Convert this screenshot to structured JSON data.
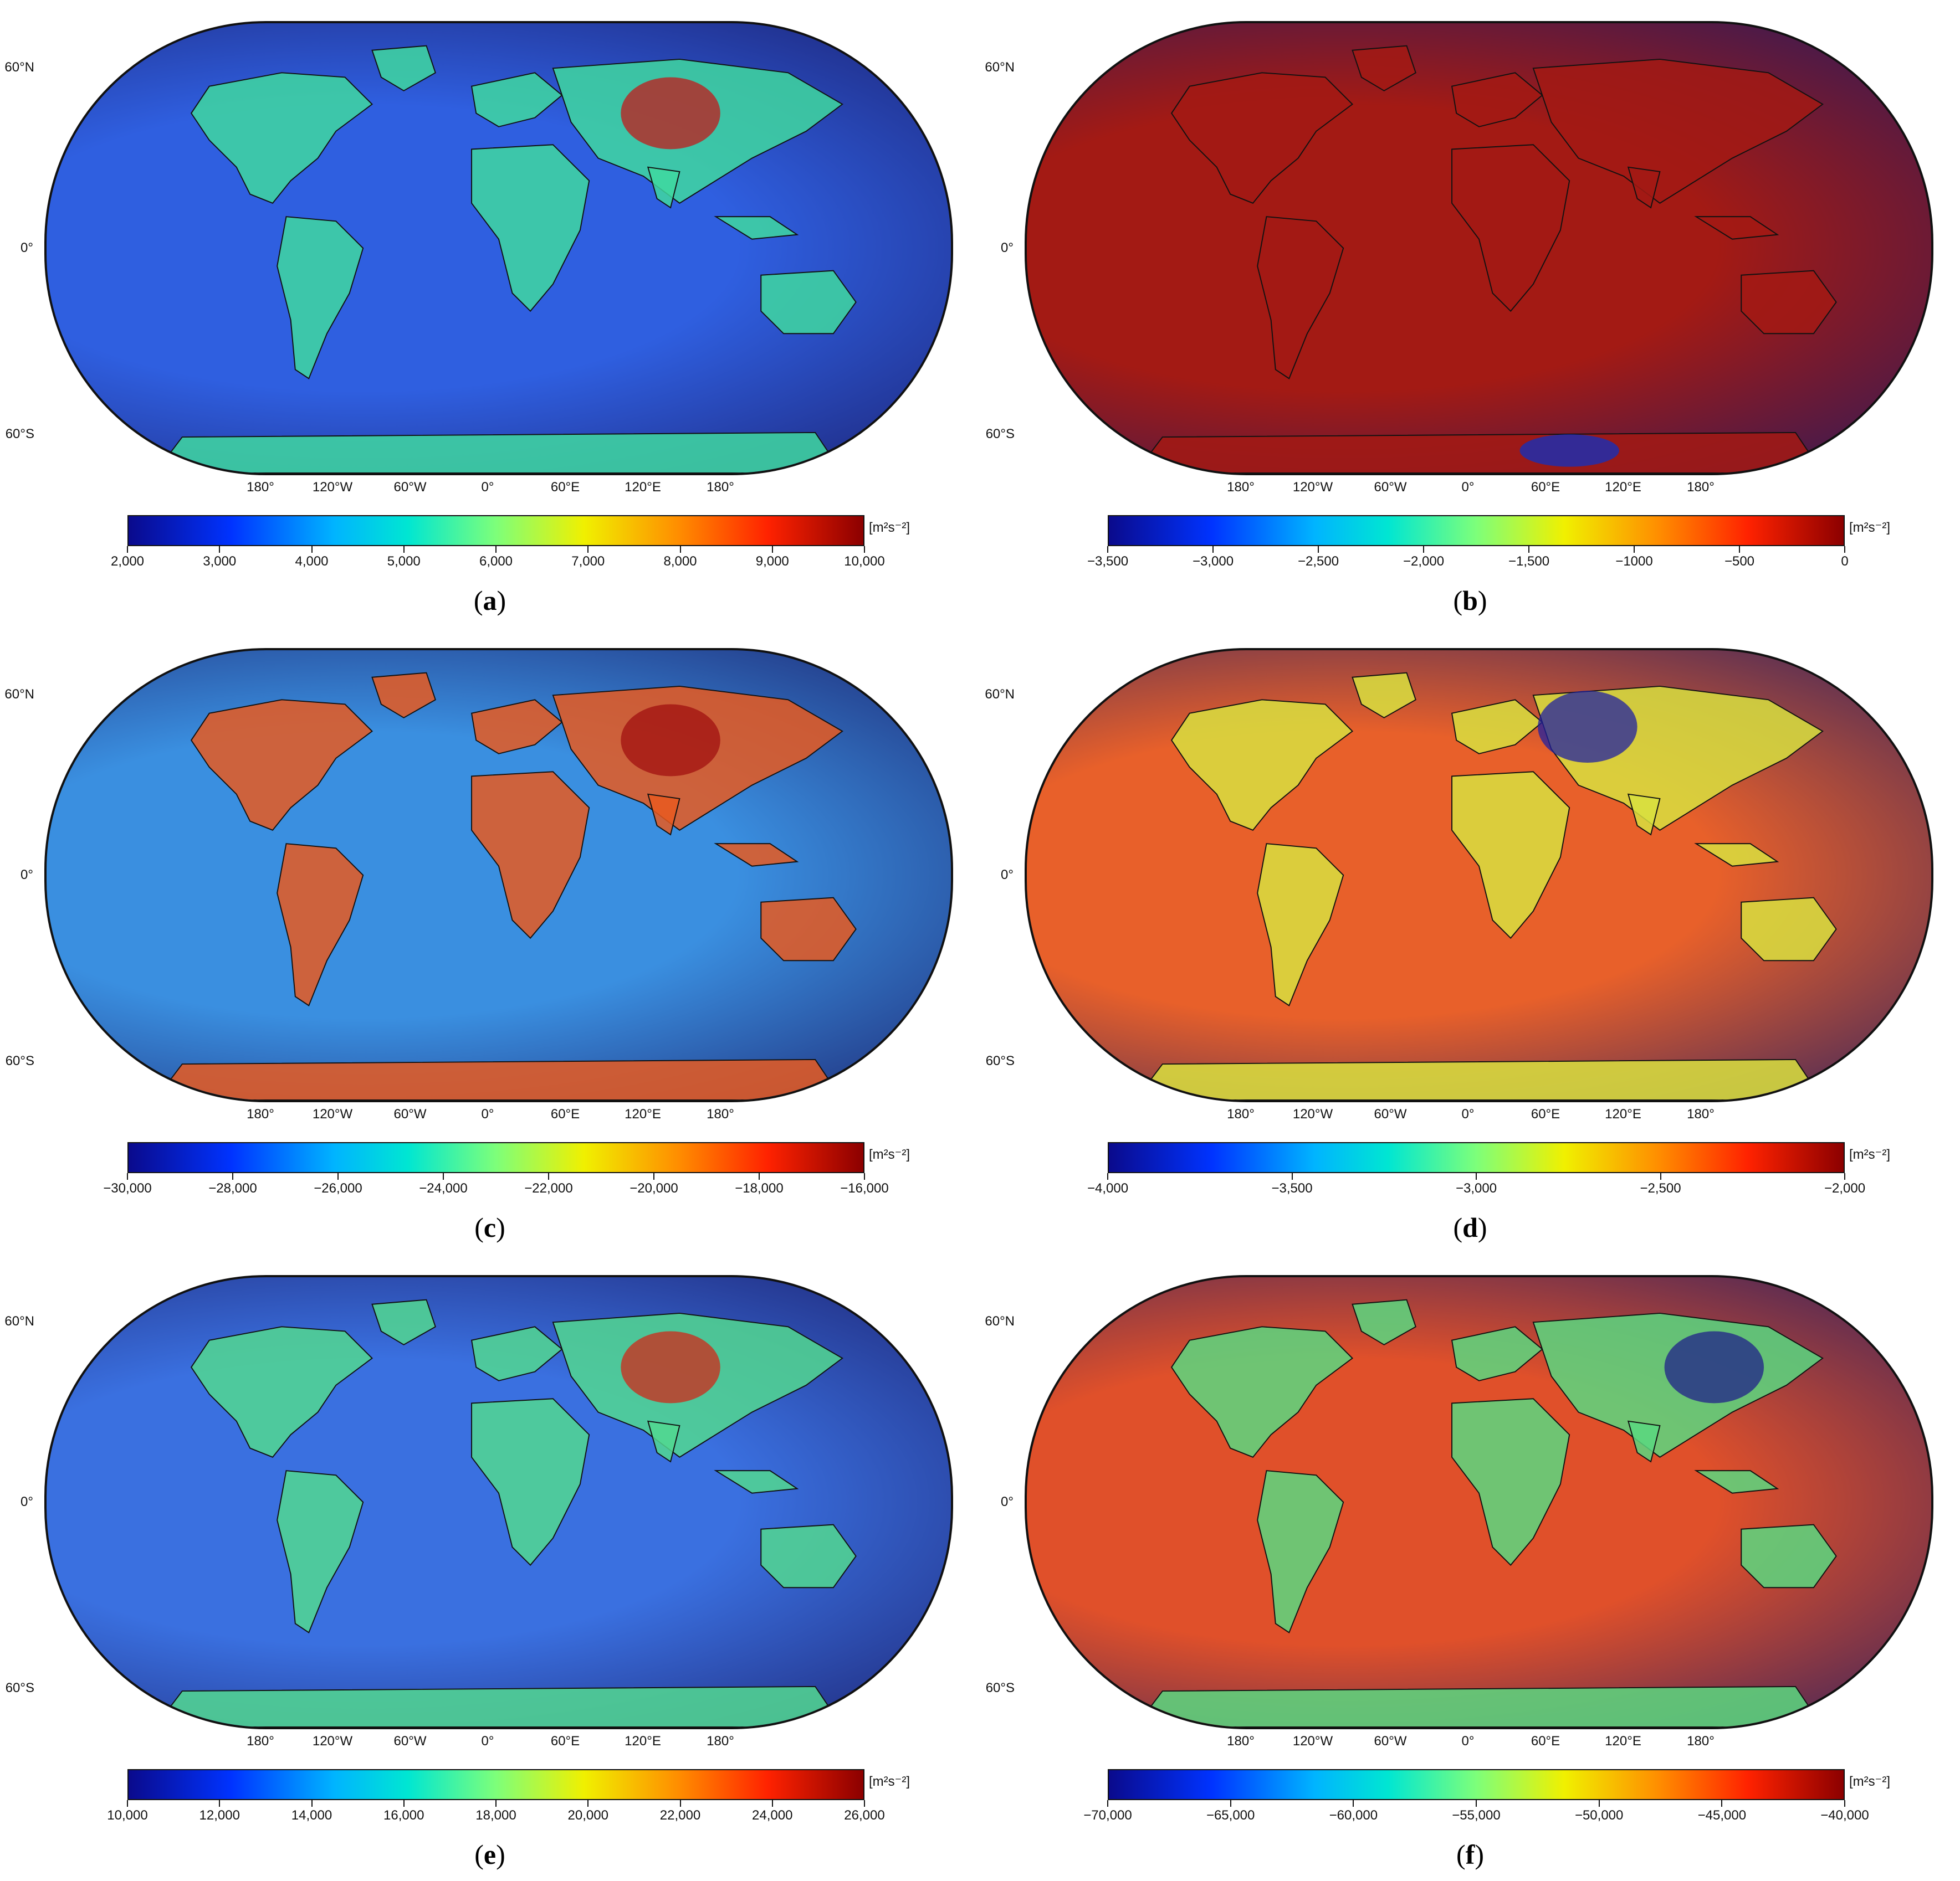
{
  "lat_labels": [
    "60°N",
    "0°",
    "60°S"
  ],
  "lon_labels": [
    "180°",
    "120°W",
    "60°W",
    "0°",
    "60°E",
    "120°E",
    "180°"
  ],
  "unit_label": "[m²s⁻²]",
  "panels": [
    {
      "id": "a",
      "caption": "a",
      "map_tint": "#2f5fe0",
      "land_tint": "#3fd8a0",
      "highlight": "#c21a1a",
      "colorbar": {
        "min": 2000,
        "max": 10000,
        "ticks": [
          "2,000",
          "3,000",
          "4,000",
          "5,000",
          "6,000",
          "7,000",
          "8,000",
          "9,000",
          "10,000"
        ]
      }
    },
    {
      "id": "b",
      "caption": "b",
      "map_tint": "#a31a14",
      "land_tint": "#a31a14",
      "highlight": "#1030c0",
      "colorbar": {
        "min": -3500,
        "max": 0,
        "ticks": [
          "−3,500",
          "−3,000",
          "−2,500",
          "−2,000",
          "−1,500",
          "−1000",
          "−500",
          "0"
        ]
      }
    },
    {
      "id": "c",
      "caption": "c",
      "map_tint": "#3a8fe0",
      "land_tint": "#e85a20",
      "highlight": "#a01010",
      "colorbar": {
        "min": -30000,
        "max": -16000,
        "ticks": [
          "−30,000",
          "−28,000",
          "−26,000",
          "−24,000",
          "−22,000",
          "−20,000",
          "−18,000",
          "−16,000"
        ]
      }
    },
    {
      "id": "d",
      "caption": "d",
      "map_tint": "#e8602a",
      "land_tint": "#d8e040",
      "highlight": "#2020a0",
      "colorbar": {
        "min": -4000,
        "max": -2000,
        "ticks": [
          "−4,000",
          "−3,500",
          "−3,000",
          "−2,500",
          "−2,000"
        ]
      }
    },
    {
      "id": "e",
      "caption": "e",
      "map_tint": "#3a70e0",
      "land_tint": "#52d890",
      "highlight": "#d02818",
      "colorbar": {
        "min": 10000,
        "max": 26000,
        "ticks": [
          "10,000",
          "12,000",
          "14,000",
          "16,000",
          "18,000",
          "20,000",
          "22,000",
          "24,000",
          "26,000"
        ]
      }
    },
    {
      "id": "f",
      "caption": "f",
      "map_tint": "#e0502a",
      "land_tint": "#5ad880",
      "highlight": "#20208a",
      "colorbar": {
        "min": -70000,
        "max": -40000,
        "ticks": [
          "−70,000",
          "−65,000",
          "−60,000",
          "−55,000",
          "−50,000",
          "−45,000",
          "−40,000"
        ]
      }
    }
  ]
}
